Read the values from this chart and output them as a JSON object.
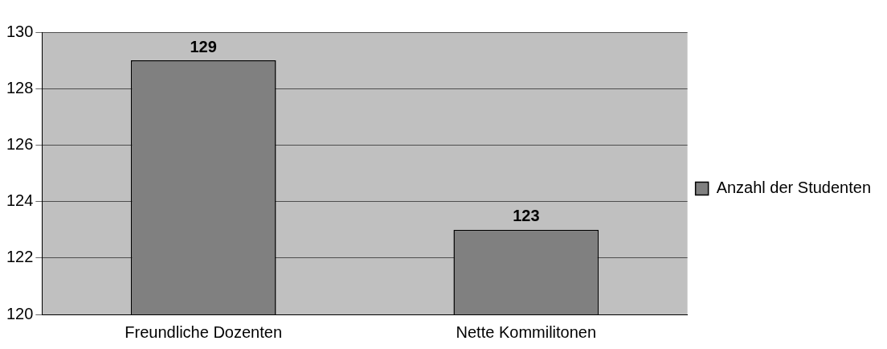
{
  "chart_data": {
    "type": "bar",
    "categories": [
      "Freundliche Dozenten",
      "Nette Kommilitonen"
    ],
    "series": [
      {
        "name": "Anzahl der Studenten",
        "color": "#808080",
        "values": [
          129,
          123
        ]
      }
    ],
    "ylim": [
      120,
      130
    ],
    "yticks": [
      120,
      122,
      124,
      126,
      128,
      130
    ],
    "grid": "y",
    "legend": "right",
    "data_labels": true
  }
}
